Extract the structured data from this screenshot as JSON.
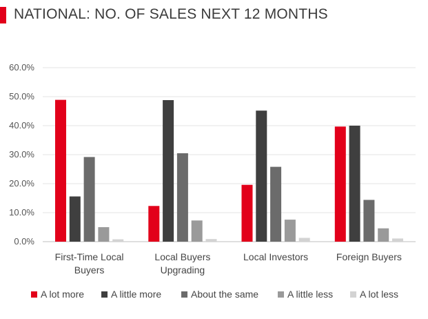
{
  "header": {
    "title": "NATIONAL: NO. OF SALES NEXT 12 MONTHS"
  },
  "chart_data": {
    "type": "bar",
    "title": "NATIONAL: NO. OF SALES NEXT 12 MONTHS",
    "categories": [
      [
        "First-Time Local",
        "Buyers"
      ],
      [
        "Local Buyers",
        "Upgrading"
      ],
      [
        "Local Investors"
      ],
      [
        "Foreign Buyers"
      ]
    ],
    "series": [
      {
        "name": "A lot more",
        "color": "#e2001a",
        "values": [
          48.9,
          12.3,
          19.6,
          39.7
        ]
      },
      {
        "name": "A little more",
        "color": "#3f3f3f",
        "values": [
          15.6,
          48.8,
          45.2,
          40.0
        ]
      },
      {
        "name": "About the same",
        "color": "#6b6b6b",
        "values": [
          29.2,
          30.5,
          25.8,
          14.4
        ]
      },
      {
        "name": "A little less",
        "color": "#9a9a9a",
        "values": [
          5.0,
          7.3,
          7.6,
          4.6
        ]
      },
      {
        "name": "A lot less",
        "color": "#d3d3d3",
        "values": [
          0.8,
          0.9,
          1.3,
          1.1
        ]
      }
    ],
    "ylim": [
      0,
      60
    ],
    "yticks": [
      "0.0%",
      "10.0%",
      "20.0%",
      "30.0%",
      "40.0%",
      "50.0%",
      "60.0%"
    ],
    "grid": true,
    "legend": "bottom"
  }
}
